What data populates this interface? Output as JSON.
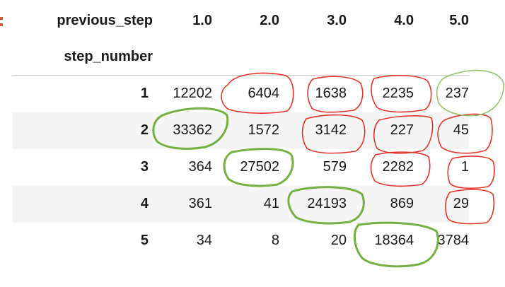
{
  "header": {
    "columns_label": "previous_step",
    "index_label": "step_number",
    "columns": [
      "1.0",
      "2.0",
      "3.0",
      "4.0",
      "5.0"
    ]
  },
  "rows": [
    {
      "index": "1",
      "values": [
        "12202",
        "6404",
        "1638",
        "2235",
        "237"
      ]
    },
    {
      "index": "2",
      "values": [
        "33362",
        "1572",
        "3142",
        "227",
        "45"
      ]
    },
    {
      "index": "3",
      "values": [
        "364",
        "27502",
        "579",
        "2282",
        "1"
      ]
    },
    {
      "index": "4",
      "values": [
        "361",
        "41",
        "24193",
        "869",
        "29"
      ]
    },
    {
      "index": "5",
      "values": [
        "34",
        "8",
        "20",
        "18364",
        "3784"
      ]
    }
  ],
  "annotations": {
    "diagonal_marker_color": "#74b042",
    "off_diagonal_marker_color": "#e4332a"
  }
}
